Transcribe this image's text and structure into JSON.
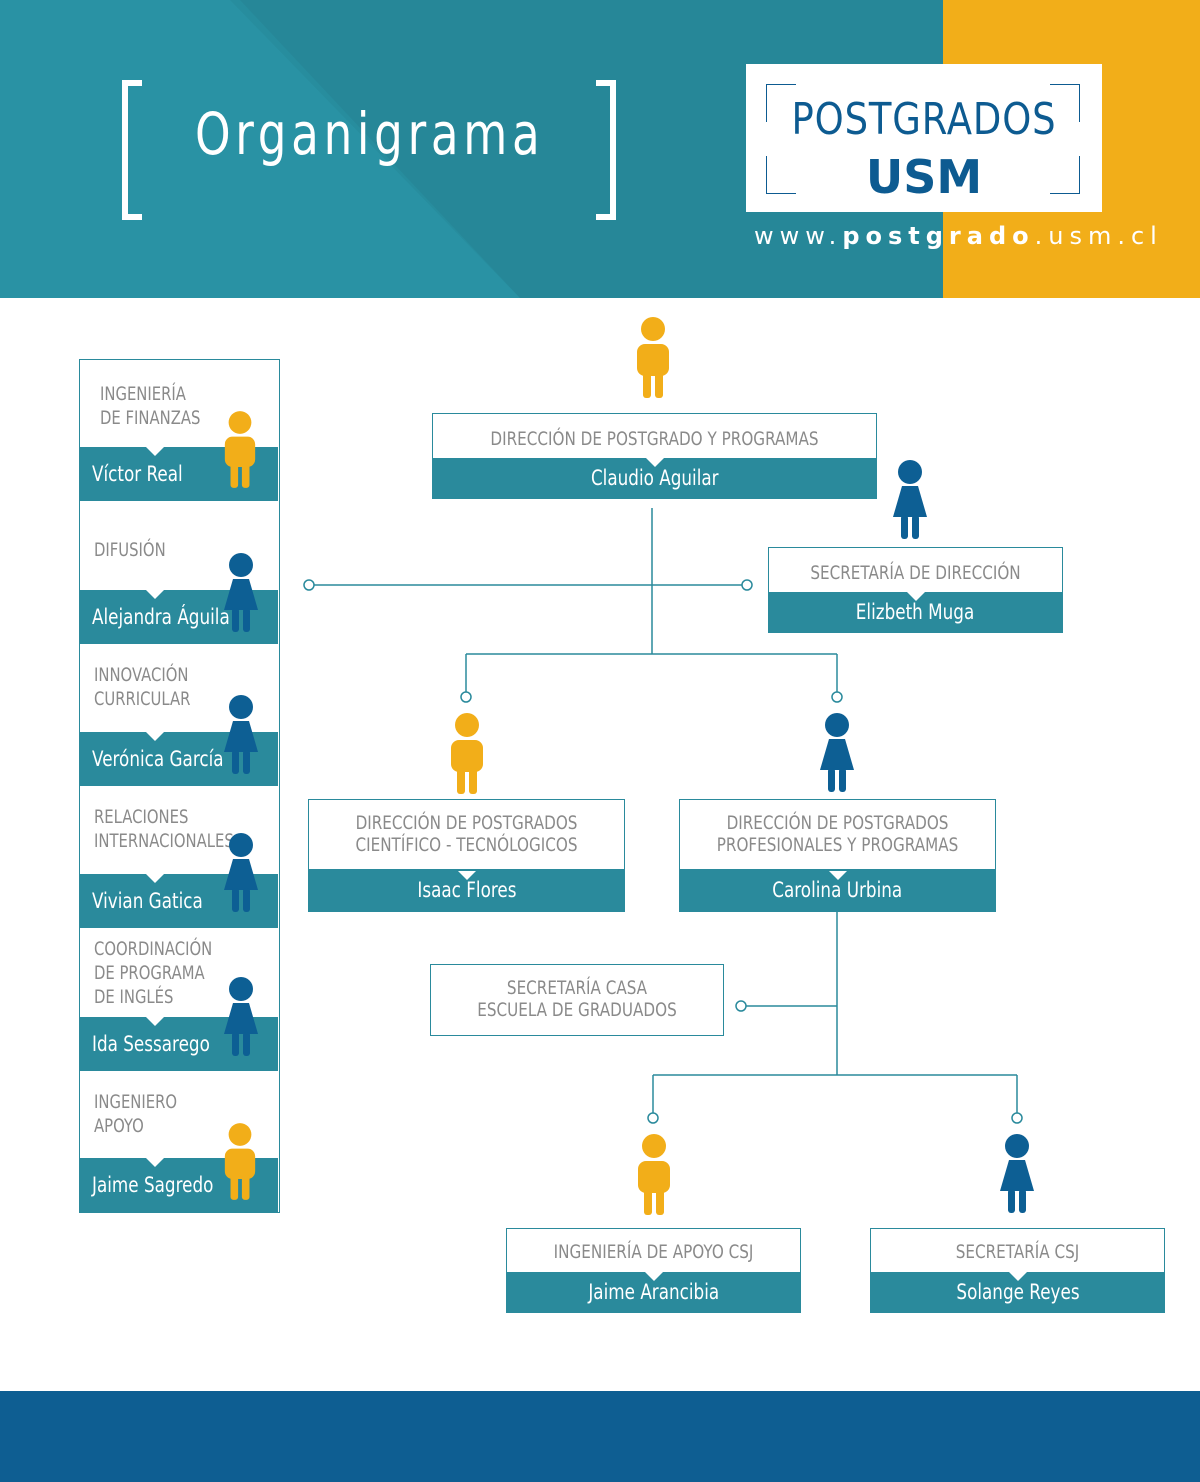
{
  "header": {
    "title": "Organigrama",
    "logo_line1": "POSTGRADOS",
    "logo_line2": "USM",
    "url_prefix": "www.",
    "url_bold": "postgrado",
    "url_suffix": ".usm.cl"
  },
  "colors": {
    "teal": "#2a8a9c",
    "header_teal": "#2990a2",
    "yellow": "#f2ae19",
    "navy": "#0e5e92",
    "person_blue": "#0d5f94",
    "gray_text": "#8a8a8a"
  },
  "main": {
    "direccion": {
      "role": "DIRECCIÓN DE POSTGRADO Y PROGRAMAS",
      "name": "Claudio Aguilar"
    },
    "secretaria_direccion": {
      "role": "SECRETARÍA DE DIRECCIÓN",
      "name": "Elizbeth Muga"
    },
    "cientifico": {
      "role_line1": "DIRECCIÓN DE POSTGRADOS",
      "role_line2": "CIENTÍFICO - TECNÓLOGICOS",
      "name": "Isaac Flores"
    },
    "profesionales": {
      "role_line1": "DIRECCIÓN DE POSTGRADOS",
      "role_line2": "PROFESIONALES Y PROGRAMAS",
      "name": "Carolina Urbina"
    },
    "secretaria_casa": {
      "role_line1": "SECRETARÍA CASA",
      "role_line2": "ESCUELA DE GRADUADOS"
    },
    "ingenieria_csj": {
      "role": "INGENIERÍA DE APOYO CSJ",
      "name": "Jaime Arancibia"
    },
    "secretaria_csj": {
      "role": "SECRETARÍA CSJ",
      "name": "Solange Reyes"
    }
  },
  "side": [
    {
      "role_lines": [
        "INGENIERÍA",
        "DE FINANZAS"
      ],
      "name": "Víctor Real",
      "person": "yellow"
    },
    {
      "role_lines": [
        "DIFUSIÓN"
      ],
      "name": "Alejandra Águila",
      "person": "blue"
    },
    {
      "role_lines": [
        "INNOVACIÓN",
        "CURRICULAR"
      ],
      "name": "Verónica García",
      "person": "blue"
    },
    {
      "role_lines": [
        "RELACIONES",
        "INTERNACIONALES"
      ],
      "name": "Vivian Gatica",
      "person": "blue"
    },
    {
      "role_lines": [
        "COORDINACIÓN",
        "DE PROGRAMA",
        "DE INGLÉS"
      ],
      "name": "Ida Sessarego",
      "person": "blue"
    },
    {
      "role_lines": [
        "INGENIERO",
        "APOYO"
      ],
      "name": "Jaime Sagredo",
      "person": "yellow"
    }
  ],
  "icons": {
    "male": "male-person-icon",
    "female": "female-person-icon"
  }
}
